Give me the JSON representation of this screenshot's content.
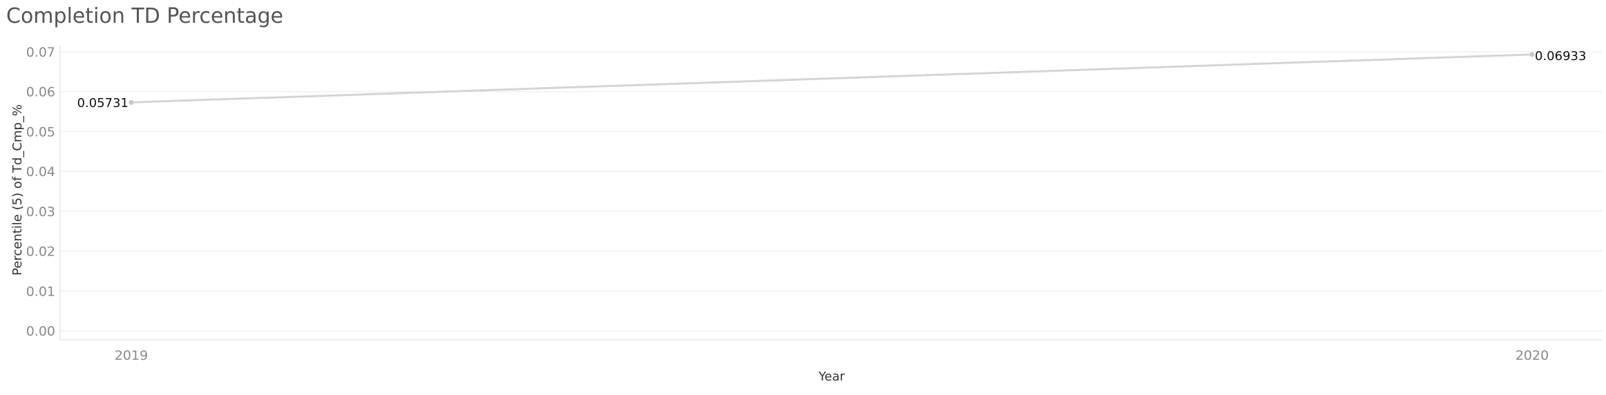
{
  "chart_data": {
    "type": "line",
    "title": "Completion TD Percentage",
    "xlabel": "Year",
    "ylabel": "Percentile (5) of Td_Cmp_%",
    "categories": [
      "2019",
      "2020"
    ],
    "series": [
      {
        "values": [
          0.05731,
          0.06933
        ],
        "labels": [
          "0.05731",
          "0.06933"
        ]
      }
    ],
    "ylim": [
      0,
      0.07
    ],
    "yticks": [
      0.0,
      0.01,
      0.02,
      0.03,
      0.04,
      0.05,
      0.06,
      0.07
    ],
    "ytick_labels": [
      "0.00",
      "0.01",
      "0.02",
      "0.03",
      "0.04",
      "0.05",
      "0.06",
      "0.07"
    ],
    "grid": true,
    "colors": {
      "line": "#d4d4d4",
      "grid": "#f0f0f0",
      "axis": "#e6e6e6"
    }
  }
}
